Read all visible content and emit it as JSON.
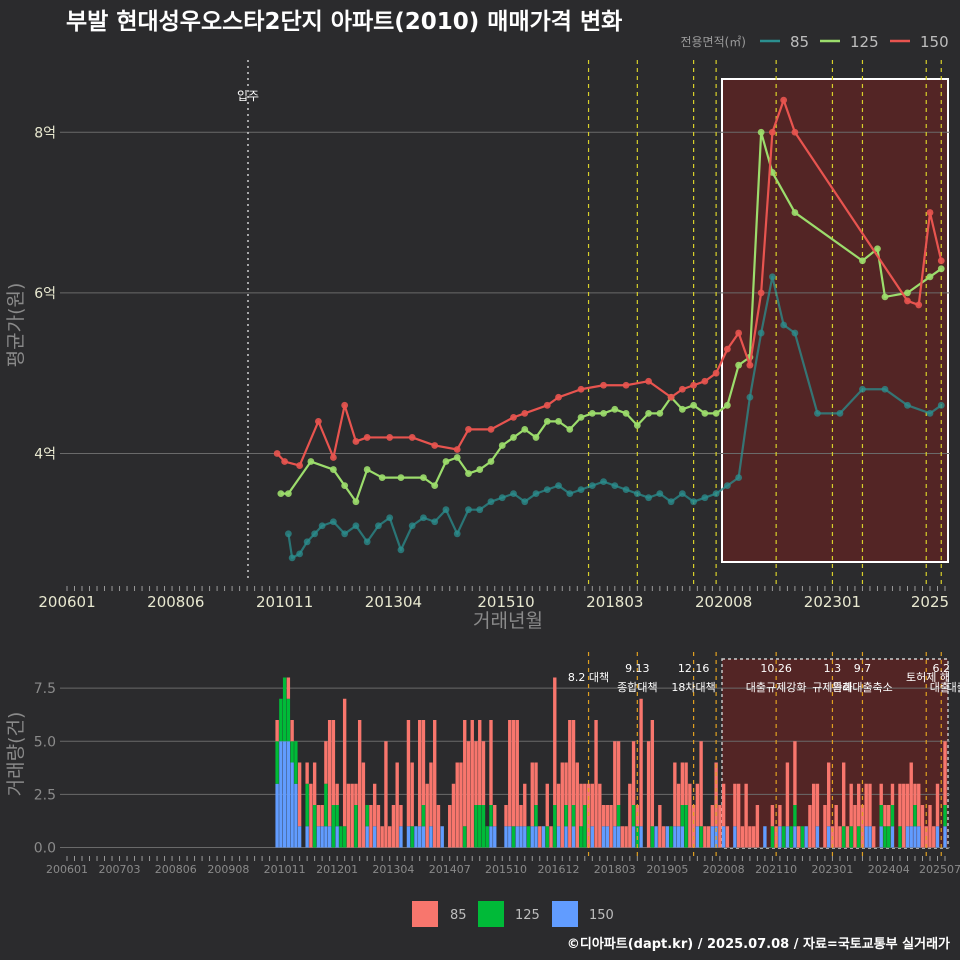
{
  "title": "부발 현대성우오스타2단지 아파트(2010) 매매가격 변화",
  "footer": "©디아파트(dapt.kr) / 2025.07.08 / 자료=국토교통부 실거래가",
  "xlabel": "거래년월",
  "ylabel_price": "평균가(원)",
  "ylabel_volume": "거래량(건)",
  "legend_title": "전용면적(㎡)",
  "move_in_label": "입주",
  "series": [
    {
      "name": "85",
      "color": "#2b8f8f",
      "bar_color": "#f8766d"
    },
    {
      "name": "125",
      "color": "#9cdd6c",
      "bar_color": "#00ba38"
    },
    {
      "name": "150",
      "color": "#e8544f",
      "bar_color": "#619cff"
    }
  ],
  "chart_data": [
    {
      "type": "line",
      "title": "평균가",
      "xlabel": "거래년월",
      "ylabel": "평균가(원)",
      "x_range": [
        "200601",
        "202507"
      ],
      "x_ticks": [
        "200601",
        "200806",
        "201011",
        "201304",
        "201510",
        "201803",
        "202008",
        "202301",
        "2025"
      ],
      "y_ticks": [
        {
          "value": 4,
          "label": "4억"
        },
        {
          "value": 6,
          "label": "6억"
        },
        {
          "value": 8,
          "label": "8억"
        }
      ],
      "ylim": [
        2.35,
        8.9
      ],
      "highlight_range": [
        "202008",
        "202507"
      ],
      "move_in": "200908",
      "series": [
        {
          "name": "85",
          "points": [
            [
              "2010-12",
              3.0
            ],
            [
              "2011-01",
              2.7
            ],
            [
              "2011-03",
              2.75
            ],
            [
              "2011-05",
              2.9
            ],
            [
              "2011-07",
              3.0
            ],
            [
              "2011-09",
              3.1
            ],
            [
              "2011-12",
              3.15
            ],
            [
              "2012-03",
              3.0
            ],
            [
              "2012-06",
              3.1
            ],
            [
              "2012-09",
              2.9
            ],
            [
              "2012-12",
              3.1
            ],
            [
              "2013-03",
              3.2
            ],
            [
              "2013-06",
              2.8
            ],
            [
              "2013-09",
              3.1
            ],
            [
              "2013-12",
              3.2
            ],
            [
              "2014-03",
              3.15
            ],
            [
              "2014-06",
              3.3
            ],
            [
              "2014-09",
              3.0
            ],
            [
              "2014-12",
              3.3
            ],
            [
              "2015-03",
              3.3
            ],
            [
              "2015-06",
              3.4
            ],
            [
              "2015-09",
              3.45
            ],
            [
              "2015-12",
              3.5
            ],
            [
              "2016-03",
              3.4
            ],
            [
              "2016-06",
              3.5
            ],
            [
              "2016-09",
              3.55
            ],
            [
              "2016-12",
              3.6
            ],
            [
              "2017-03",
              3.5
            ],
            [
              "2017-06",
              3.55
            ],
            [
              "2017-09",
              3.6
            ],
            [
              "2017-12",
              3.65
            ],
            [
              "2018-03",
              3.6
            ],
            [
              "2018-06",
              3.55
            ],
            [
              "2018-09",
              3.5
            ],
            [
              "2018-12",
              3.45
            ],
            [
              "2019-03",
              3.5
            ],
            [
              "2019-06",
              3.4
            ],
            [
              "2019-09",
              3.5
            ],
            [
              "2019-12",
              3.4
            ],
            [
              "2020-03",
              3.45
            ],
            [
              "2020-06",
              3.5
            ],
            [
              "2020-09",
              3.6
            ],
            [
              "2020-12",
              3.7
            ],
            [
              "2021-03",
              4.7
            ],
            [
              "2021-06",
              5.5
            ],
            [
              "2021-09",
              6.2
            ],
            [
              "2021-12",
              5.6
            ],
            [
              "2022-03",
              5.5
            ],
            [
              "2022-09",
              4.5
            ],
            [
              "2023-03",
              4.5
            ],
            [
              "2023-09",
              4.8
            ],
            [
              "2024-03",
              4.8
            ],
            [
              "2024-09",
              4.6
            ],
            [
              "2025-03",
              4.5
            ],
            [
              "2025-06",
              4.6
            ]
          ]
        },
        {
          "name": "125",
          "points": [
            [
              "2010-10",
              3.5
            ],
            [
              "2010-12",
              3.5
            ],
            [
              "2011-06",
              3.9
            ],
            [
              "2011-12",
              3.8
            ],
            [
              "2012-03",
              3.6
            ],
            [
              "2012-06",
              3.4
            ],
            [
              "2012-09",
              3.8
            ],
            [
              "2013-01",
              3.7
            ],
            [
              "2013-06",
              3.7
            ],
            [
              "2013-12",
              3.7
            ],
            [
              "2014-03",
              3.6
            ],
            [
              "2014-06",
              3.9
            ],
            [
              "2014-09",
              3.95
            ],
            [
              "2014-12",
              3.75
            ],
            [
              "2015-03",
              3.8
            ],
            [
              "2015-06",
              3.9
            ],
            [
              "2015-09",
              4.1
            ],
            [
              "2015-12",
              4.2
            ],
            [
              "2016-03",
              4.3
            ],
            [
              "2016-06",
              4.2
            ],
            [
              "2016-09",
              4.4
            ],
            [
              "2016-12",
              4.4
            ],
            [
              "2017-03",
              4.3
            ],
            [
              "2017-06",
              4.45
            ],
            [
              "2017-09",
              4.5
            ],
            [
              "2017-12",
              4.5
            ],
            [
              "2018-03",
              4.55
            ],
            [
              "2018-06",
              4.5
            ],
            [
              "2018-09",
              4.35
            ],
            [
              "2018-12",
              4.5
            ],
            [
              "2019-03",
              4.5
            ],
            [
              "2019-06",
              4.7
            ],
            [
              "2019-09",
              4.55
            ],
            [
              "2019-12",
              4.6
            ],
            [
              "2020-03",
              4.5
            ],
            [
              "2020-06",
              4.5
            ],
            [
              "2020-09",
              4.6
            ],
            [
              "2020-12",
              5.1
            ],
            [
              "2021-03",
              5.2
            ],
            [
              "2021-06",
              8.0
            ],
            [
              "2021-09",
              7.5
            ],
            [
              "2022-03",
              7.0
            ],
            [
              "2023-09",
              6.4
            ],
            [
              "2024-01",
              6.55
            ],
            [
              "2024-03",
              5.95
            ],
            [
              "2024-09",
              6.0
            ],
            [
              "2025-03",
              6.2
            ],
            [
              "2025-06",
              6.3
            ]
          ]
        },
        {
          "name": "150",
          "points": [
            [
              "2010-09",
              4.0
            ],
            [
              "2010-11",
              3.9
            ],
            [
              "2011-03",
              3.85
            ],
            [
              "2011-08",
              4.4
            ],
            [
              "2011-12",
              3.95
            ],
            [
              "2012-03",
              4.6
            ],
            [
              "2012-06",
              4.15
            ],
            [
              "2012-09",
              4.2
            ],
            [
              "2013-03",
              4.2
            ],
            [
              "2013-09",
              4.2
            ],
            [
              "2014-03",
              4.1
            ],
            [
              "2014-09",
              4.05
            ],
            [
              "2014-12",
              4.3
            ],
            [
              "2015-06",
              4.3
            ],
            [
              "2015-12",
              4.45
            ],
            [
              "2016-03",
              4.5
            ],
            [
              "2016-09",
              4.6
            ],
            [
              "2016-12",
              4.7
            ],
            [
              "2017-06",
              4.8
            ],
            [
              "2017-12",
              4.85
            ],
            [
              "2018-06",
              4.85
            ],
            [
              "2018-12",
              4.9
            ],
            [
              "2019-06",
              4.7
            ],
            [
              "2019-09",
              4.8
            ],
            [
              "2019-12",
              4.85
            ],
            [
              "2020-03",
              4.9
            ],
            [
              "2020-06",
              5.0
            ],
            [
              "2020-09",
              5.3
            ],
            [
              "2020-12",
              5.5
            ],
            [
              "2021-03",
              5.1
            ],
            [
              "2021-06",
              6.0
            ],
            [
              "2021-09",
              8.0
            ],
            [
              "2021-12",
              8.4
            ],
            [
              "2022-03",
              8.0
            ],
            [
              "2024-09",
              5.9
            ],
            [
              "2024-12",
              5.85
            ],
            [
              "2025-03",
              7.0
            ],
            [
              "2025-06",
              6.4
            ]
          ]
        }
      ]
    },
    {
      "type": "bar",
      "title": "거래량",
      "xlabel": "거래년월",
      "ylabel": "거래량(건)",
      "stacked": true,
      "x_ticks": [
        "200601",
        "200703",
        "200806",
        "200908",
        "201011",
        "201201",
        "201304",
        "201407",
        "201510",
        "201612",
        "201803",
        "201905",
        "202008",
        "202110",
        "202301",
        "202404",
        "202507"
      ],
      "y_ticks": [
        {
          "value": 0,
          "label": "0.0"
        },
        {
          "value": 2.5,
          "label": "2.5"
        },
        {
          "value": 5,
          "label": "5.0"
        },
        {
          "value": 7.5,
          "label": "7.5"
        }
      ],
      "ylim": [
        -0.4,
        9.2
      ],
      "series": [
        {
          "name": "85",
          "values": "monthly, see bars"
        },
        {
          "name": "125",
          "values": "monthly, see bars"
        },
        {
          "name": "150",
          "values": "monthly, see bars"
        }
      ],
      "policies": [
        {
          "date": "2017-08",
          "label_top": "",
          "label_bottom": "8.2 대책"
        },
        {
          "date": "2018-09",
          "label_top": "9.13",
          "label_bottom": "종합대책"
        },
        {
          "date": "2019-12",
          "label_top": "12.16",
          "label_bottom": "18차대책"
        },
        {
          "date": "2020-06",
          "label_top": "",
          "label_bottom": ""
        },
        {
          "date": "2021-10",
          "label_top": "10.26",
          "label_bottom": "대출규제강화"
        },
        {
          "date": "2023-01",
          "label_top": "1.3",
          "label_bottom": "규제완화"
        },
        {
          "date": "2023-09",
          "label_top": "9.7",
          "label_bottom": "특례대출축소"
        },
        {
          "date": "2025-02",
          "label_top": "",
          "label_bottom": "토허제 해"
        },
        {
          "date": "2025-06",
          "label_top": "6.2",
          "label_bottom": "대출"
        }
      ],
      "policy_label_extra": {
        "date": "2024-12",
        "label": "대출"
      }
    }
  ]
}
